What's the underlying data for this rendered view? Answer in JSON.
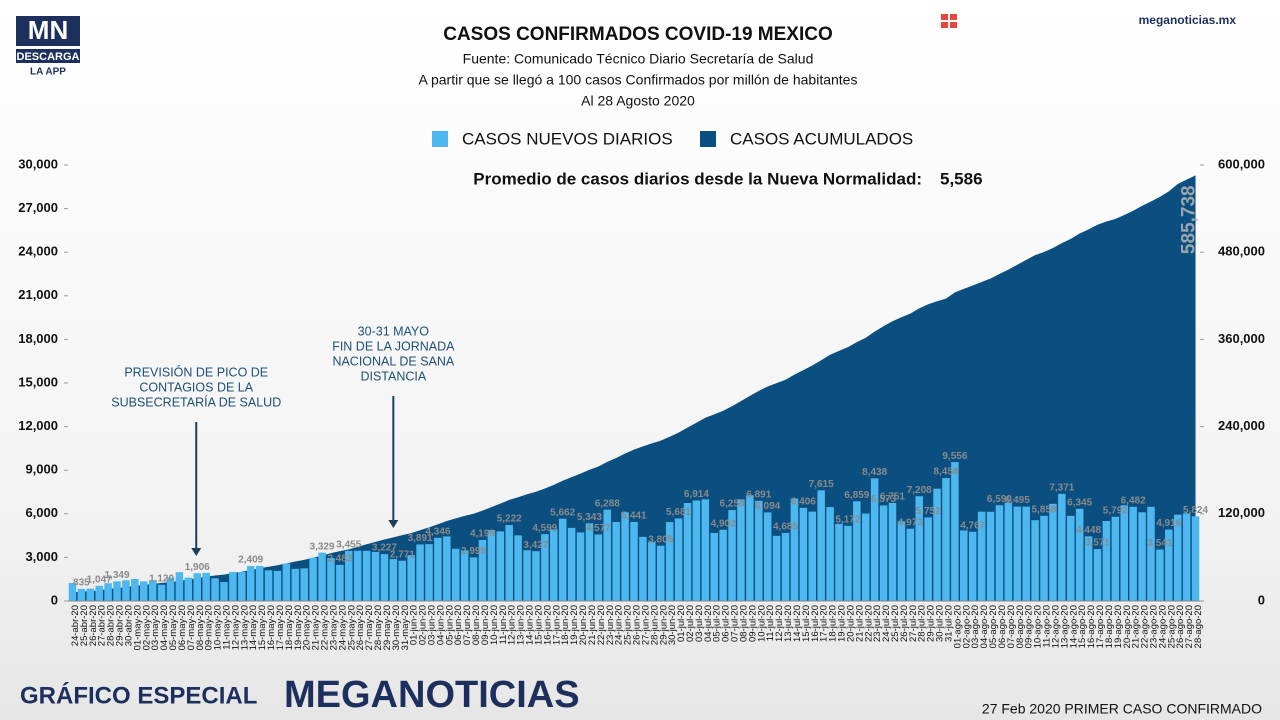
{
  "header": {
    "logo": "MN",
    "logo_sub": "DESCARGA",
    "logo_app": "LA APP",
    "site": "meganoticias.mx"
  },
  "footer": {
    "left": "GRÁFICO ESPECIAL",
    "brand": "MEGANOTICIAS",
    "right": "27 Feb 2020 PRIMER CASO CONFIRMADO"
  },
  "chart_data": {
    "type": "bar_area",
    "title": "CASOS CONFIRMADOS COVID-19 MEXICO",
    "subtitle": [
      "Fuente: Comunicado Técnico Diario Secretaría de Salud",
      "A partir que se llegó a 100 casos Confirmados por millón de habitantes",
      "Al 28 Agosto 2020"
    ],
    "average_text": "Promedio de casos diarios desde la Nueva Normalidad:",
    "average_value": "5,586",
    "annotations": [
      {
        "lines": [
          "PREVISIÓN DE PICO DE",
          "CONTAGIOS DE LA",
          "SUBSECRETARÍA DE SALUD"
        ],
        "index": 14
      },
      {
        "lines": [
          "30-31 MAYO",
          "FIN DE LA JORNADA",
          "NACIONAL DE SANA",
          "DISTANCIA"
        ],
        "index": 36
      }
    ],
    "categories": [
      "24-abr-20",
      "25-abr-20",
      "26-abr-20",
      "27-abr-20",
      "28-abr-20",
      "29-abr-20",
      "30-abr-20",
      "01-may-20",
      "02-may-20",
      "03-may-20",
      "04-may-20",
      "05-may-20",
      "06-may-20",
      "07-may-20",
      "08-may-20",
      "09-may-20",
      "10-may-20",
      "11-may-20",
      "12-may-20",
      "13-may-20",
      "14-may-20",
      "15-may-20",
      "16-may-20",
      "17-may-20",
      "18-may-20",
      "19-may-20",
      "20-may-20",
      "21-may-20",
      "22-may-20",
      "23-may-20",
      "24-may-20",
      "25-may-20",
      "26-may-20",
      "27-may-20",
      "28-may-20",
      "29-may-20",
      "30-may-20",
      "31-may-20",
      "01-jun-20",
      "02-jun-20",
      "03-jun-20",
      "04-jun-20",
      "05-jun-20",
      "06-jun-20",
      "07-jun-20",
      "08-jun-20",
      "09-jun-20",
      "10-jun-20",
      "11-jun-20",
      "12-jun-20",
      "13-jun-20",
      "14-jun-20",
      "15-jun-20",
      "16-jun-20",
      "17-jun-20",
      "18-jun-20",
      "19-jun-20",
      "20-jun-20",
      "21-jun-20",
      "22-jun-20",
      "23-jun-20",
      "24-jun-20",
      "25-jun-20",
      "26-jun-20",
      "27-jun-20",
      "28-jun-20",
      "29-jun-20",
      "30-jun-20",
      "01-jul-20",
      "02-jul-20",
      "03-jul-20",
      "04-jul-20",
      "05-jul-20",
      "06-jul-20",
      "07-jul-20",
      "08-jul-20",
      "09-jul-20",
      "10-jul-20",
      "11-jul-20",
      "12-jul-20",
      "13-jul-20",
      "14-jul-20",
      "15-jul-20",
      "16-jul-20",
      "17-jul-20",
      "18-jul-20",
      "19-jul-20",
      "20-jul-20",
      "21-jul-20",
      "22-jul-20",
      "23-jul-20",
      "24-jul-20",
      "25-jul-20",
      "26-jul-20",
      "27-jul-20",
      "28-jul-20",
      "29-jul-20",
      "30-jul-20",
      "31-jul-20",
      "01-ago-20",
      "02-ago-20",
      "03-ago-20",
      "04-ago-20",
      "05-ago-20",
      "06-ago-20",
      "07-ago-20",
      "08-ago-20",
      "09-ago-20",
      "10-ago-20",
      "11-ago-20",
      "12-ago-20",
      "13-ago-20",
      "14-ago-20",
      "15-ago-20",
      "16-ago-20",
      "17-ago-20",
      "18-ago-20",
      "19-ago-20",
      "20-ago-20",
      "21-ago-20",
      "22-ago-20",
      "23-ago-20",
      "24-ago-20",
      "25-ago-20",
      "26-ago-20",
      "27-ago-20",
      "28-ago-20"
    ],
    "series": [
      {
        "name": "CASOS NUEVOS DIARIOS",
        "color": "#4db8ef",
        "values": [
          1239,
          835,
          852,
          1047,
          1223,
          1349,
          1425,
          1515,
          1349,
          1434,
          1120,
          1609,
          1982,
          1609,
          1906,
          1938,
          1562,
          1305,
          1997,
          1993,
          2409,
          2414,
          2112,
          2075,
          2575,
          2213,
          2248,
          2973,
          3329,
          2960,
          2483,
          3455,
          3463,
          3455,
          3377,
          3227,
          2885,
          2771,
          3152,
          3891,
          3912,
          4346,
          4442,
          3593,
          3484,
          2999,
          4199,
          4883,
          4790,
          5222,
          4517,
          3494,
          3427,
          4599,
          4930,
          5662,
          5030,
          4717,
          5343,
          4577,
          6288,
          5437,
          6104,
          5441,
          4410,
          4050,
          3805,
          5432,
          5681,
          6740,
          6914,
          6995,
          4683,
          4902,
          6258,
          6995,
          7280,
          6891,
          6094,
          4482,
          4685,
          7051,
          6406,
          6149,
          7615,
          6464,
          5311,
          5172,
          6859,
          6019,
          8438,
          6573,
          6751,
          5480,
          4973,
          7208,
          5752,
          7730,
          8458,
          9556,
          4853,
          4767,
          6148,
          6139,
          6590,
          6751,
          6495,
          6495,
          5558,
          5858,
          6686,
          7371,
          5858,
          6345,
          4448,
          3571,
          5506,
          5792,
          6590,
          6482,
          6104,
          6482,
          3541,
          4916,
          5937,
          6029,
          5824
        ],
        "value_labels": [
          null,
          "835",
          null,
          "1,047",
          null,
          "1,349",
          null,
          null,
          null,
          null,
          "1,120",
          null,
          null,
          null,
          "1,906",
          null,
          null,
          null,
          null,
          null,
          "2,409",
          null,
          null,
          null,
          null,
          null,
          null,
          null,
          "3,329",
          null,
          "2,483",
          "3,455",
          null,
          null,
          null,
          "3,227",
          null,
          "2,771",
          null,
          "3,891",
          null,
          "4,346",
          null,
          null,
          null,
          "2,999",
          "4,199",
          null,
          null,
          "5,222",
          null,
          null,
          "3,427",
          "4,599",
          null,
          "5,662",
          null,
          null,
          "5,343",
          "4,577",
          "6,288",
          null,
          null,
          "5,441",
          null,
          null,
          "3,805",
          null,
          "5,681",
          null,
          "6,914",
          null,
          null,
          "4,902",
          "6,258",
          null,
          null,
          "6,891",
          "6,094",
          null,
          "4,685",
          null,
          "6,406",
          null,
          "7,615",
          null,
          null,
          "5,172",
          "6,859",
          null,
          "8,438",
          "6,573",
          "6,751",
          null,
          "4,973",
          "7,208",
          "5,752",
          null,
          "8,458",
          "9,556",
          null,
          "4,767",
          null,
          null,
          "6,590",
          null,
          "6,495",
          null,
          null,
          "5,858",
          null,
          "7,371",
          null,
          "6,345",
          "4,448",
          "3,571",
          null,
          "5,792",
          null,
          "6,482",
          null,
          null,
          "3,541",
          "4,916",
          null,
          null,
          "5,824"
        ]
      },
      {
        "name": "CASOS ACUMULADOS",
        "color": "#0b4f80",
        "axis": "y2",
        "values": [
          11633,
          12872,
          13842,
          14677,
          16752,
          17799,
          19224,
          20739,
          22088,
          23471,
          24905,
          26025,
          27634,
          29616,
          31522,
          33460,
          35022,
          36327,
          38324,
          40186,
          42595,
          45032,
          47144,
          49219,
          51633,
          54346,
          56594,
          59567,
          62527,
          65856,
          68620,
          71105,
          74560,
          78023,
          81400,
          84627,
          87512,
          90664,
          93435,
          97326,
          101238,
          105680,
          110026,
          113619,
          117103,
          120102,
          124301,
          129184,
          133974,
          139196,
          142690,
          146837,
          150264,
          154863,
          159793,
          165455,
          170485,
          175202,
          180545,
          185122,
          191410,
          196847,
          202951,
          208392,
          212802,
          216852,
          220657,
          226089,
          231770,
          238511,
          245251,
          252165,
          256848,
          261750,
          268008,
          275003,
          282283,
          289174,
          295268,
          299750,
          304435,
          311486,
          317635,
          324041,
          331298,
          338913,
          344224,
          349396,
          356255,
          362274,
          370712,
          378285,
          385036,
          390516,
          395489,
          402697,
          408449,
          412500,
          416179,
          424637,
          429490,
          434193,
          439046,
          443813,
          449961,
          456100,
          462690,
          469407,
          475902,
          480278,
          485836,
          492522,
          498380,
          505751,
          511369,
          517714,
          522162,
          525733,
          531239,
          537031,
          543806,
          549734,
          556216,
          563705,
          573888,
          579914,
          585738
        ],
        "value_labels": [
          null,
          null,
          null,
          null,
          null,
          null,
          null,
          null,
          null,
          null,
          null,
          null,
          null,
          null,
          null,
          null,
          null,
          null,
          null,
          null,
          null,
          null,
          null,
          null,
          null,
          null,
          null,
          null,
          null,
          null,
          null,
          null,
          null,
          null,
          null,
          null,
          null,
          null,
          null,
          null,
          null,
          null,
          null,
          null,
          null,
          null,
          null,
          null,
          null,
          null,
          null,
          null,
          null,
          null,
          null,
          null,
          null,
          null,
          null,
          null,
          null,
          null,
          null,
          null,
          null,
          null,
          null,
          null,
          null,
          null,
          null,
          null,
          null,
          null,
          null,
          null,
          null,
          null,
          null,
          null,
          null,
          null,
          null,
          null,
          null,
          null,
          null,
          null,
          null,
          null,
          null,
          null,
          null,
          null,
          null,
          null,
          null,
          null,
          null,
          null,
          null,
          null,
          null,
          null,
          null,
          null,
          null,
          null,
          null,
          null,
          null,
          null,
          null,
          null,
          null,
          null,
          null,
          null,
          null,
          null,
          null,
          null,
          null,
          null,
          null,
          null,
          "585,738"
        ]
      }
    ],
    "ylim": [
      0,
      30000
    ],
    "yticks": [
      0,
      {
        "value": 3000,
        "label": "3,000"
      },
      {
        "value": 6000,
        "label": "6,000"
      },
      {
        "value": 9000,
        "label": "9,000"
      },
      {
        "value": 12000,
        "label": "12,000"
      },
      {
        "value": 15000,
        "label": "15,000"
      },
      {
        "value": 18000,
        "label": "18,000"
      },
      {
        "value": 21000,
        "label": "21,000"
      },
      {
        "value": 24000,
        "label": "24,000"
      },
      {
        "value": 27000,
        "label": "27,000"
      },
      {
        "value": 30000,
        "label": "30,000"
      }
    ],
    "y2lim": [
      0,
      600000
    ],
    "y2ticks": [
      0,
      {
        "value": 120000,
        "label": "120,000"
      },
      {
        "value": 240000,
        "label": "240,000"
      },
      {
        "value": 360000,
        "label": "360,000"
      },
      {
        "value": 480000,
        "label": "480,000"
      },
      {
        "value": 600000,
        "label": "600,000"
      }
    ],
    "legend": "top"
  }
}
